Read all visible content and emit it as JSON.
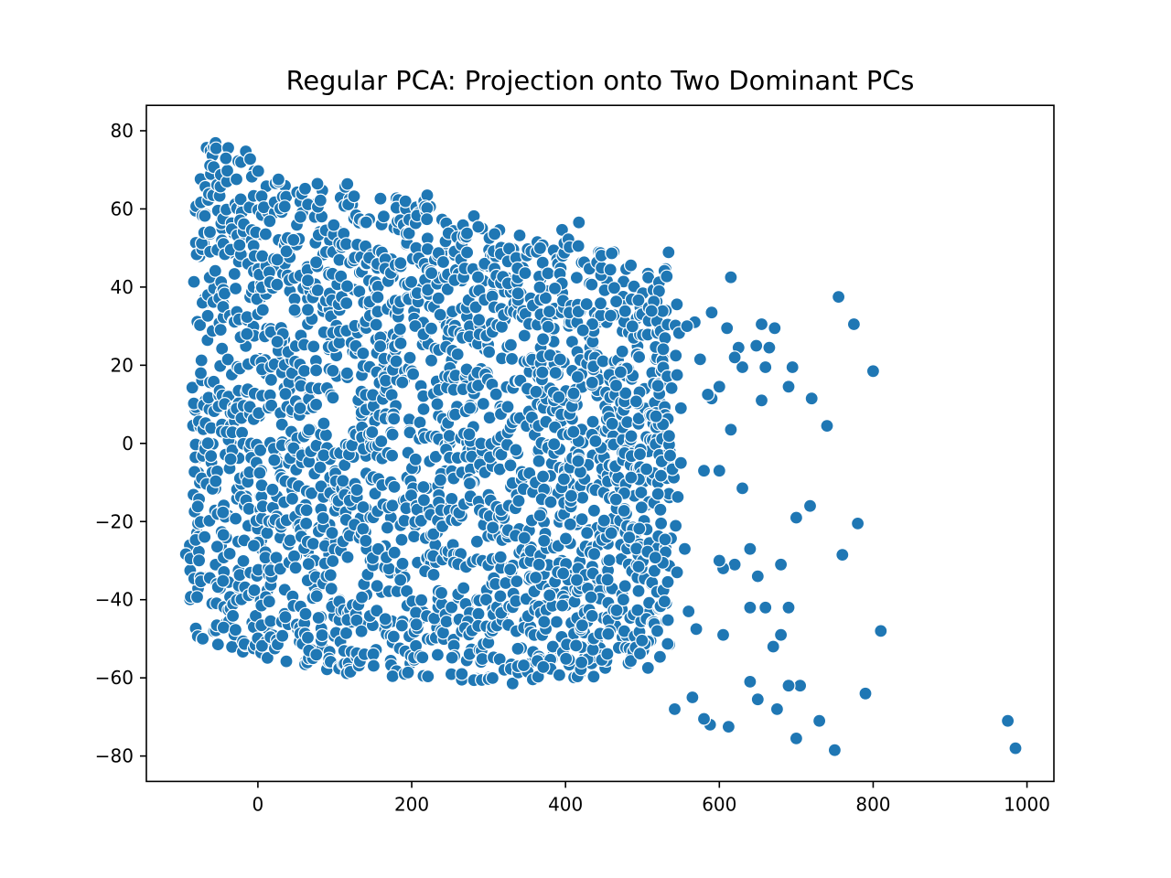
{
  "chart_data": {
    "type": "scatter",
    "title": "Regular PCA: Projection onto Two Dominant PCs",
    "xlabel": "",
    "ylabel": "",
    "xlim": [
      -145,
      1035
    ],
    "ylim": [
      -86.5,
      86.5
    ],
    "x_ticks": [
      0,
      200,
      400,
      600,
      800,
      1000
    ],
    "y_ticks": [
      80,
      60,
      40,
      20,
      0,
      -20,
      -40,
      -60,
      -80
    ],
    "y_tick_labels": [
      "80",
      "60",
      "40",
      "20",
      "0",
      "−20",
      "−40",
      "−60",
      "−80"
    ],
    "grid": false,
    "legend": "none",
    "marker_color": "#1f77b4",
    "marker_edge_color": "#ffffff",
    "outlier_points": [
      [
        975,
        -71
      ],
      [
        985,
        -78
      ],
      [
        810,
        -48
      ],
      [
        800,
        18.5
      ],
      [
        790,
        -64
      ],
      [
        780,
        -20.5
      ],
      [
        775,
        30.5
      ],
      [
        760,
        -28.5
      ],
      [
        755,
        37.5
      ],
      [
        750,
        -78.5
      ],
      [
        740,
        4.5
      ],
      [
        730,
        -71
      ],
      [
        720,
        11.5
      ],
      [
        718,
        -16
      ],
      [
        700,
        -19
      ],
      [
        700,
        -75.5
      ],
      [
        705,
        -62
      ],
      [
        695,
        19.5
      ],
      [
        690,
        -42
      ],
      [
        690,
        14.5
      ],
      [
        690,
        -62
      ],
      [
        680,
        -49
      ],
      [
        680,
        -31
      ],
      [
        675,
        -68
      ],
      [
        672,
        29.5
      ],
      [
        670,
        -52
      ],
      [
        665,
        24.5
      ],
      [
        660,
        19.5
      ],
      [
        660,
        -42
      ],
      [
        655,
        11
      ],
      [
        655,
        30.5
      ],
      [
        650,
        -34
      ],
      [
        650,
        -65.5
      ],
      [
        648,
        25
      ],
      [
        640,
        -61
      ],
      [
        640,
        -42
      ],
      [
        640,
        -27
      ],
      [
        630,
        19.5
      ],
      [
        630,
        -11.5
      ],
      [
        625,
        24.5
      ],
      [
        620,
        -31
      ],
      [
        620,
        22
      ],
      [
        615,
        3.5
      ],
      [
        615,
        42.5
      ],
      [
        612,
        -72.5
      ],
      [
        610,
        29.5
      ],
      [
        605,
        -49
      ],
      [
        605,
        -32
      ],
      [
        600,
        -7
      ],
      [
        600,
        14.5
      ],
      [
        600,
        -30
      ],
      [
        590,
        11.5
      ],
      [
        590,
        33.5
      ],
      [
        588,
        -72
      ],
      [
        585,
        12.5
      ],
      [
        580,
        -7
      ],
      [
        580,
        -70.5
      ],
      [
        575,
        21.5
      ],
      [
        570,
        -47.5
      ],
      [
        568,
        31
      ],
      [
        565,
        -65
      ],
      [
        560,
        -43
      ],
      [
        558,
        30
      ],
      [
        555,
        -27
      ],
      [
        550,
        9
      ],
      [
        550,
        -5
      ],
      [
        545,
        17.5
      ],
      [
        545,
        -33
      ],
      [
        542,
        -68
      ]
    ],
    "dense_region": {
      "description_free": true,
      "columns": [
        [
          -90,
          -46,
          -26
        ],
        [
          -80,
          -50,
          66
        ],
        [
          -70,
          -51,
          76
        ],
        [
          -60,
          -52,
          77
        ],
        [
          -50,
          -52,
          78
        ],
        [
          -40,
          -53,
          78
        ],
        [
          -30,
          -53,
          77
        ],
        [
          -20,
          -54,
          75
        ],
        [
          -10,
          -54,
          74
        ],
        [
          0,
          -55,
          74
        ],
        [
          10,
          -55,
          74
        ],
        [
          20,
          -55,
          72
        ],
        [
          30,
          -56,
          71
        ],
        [
          40,
          -56,
          70
        ],
        [
          50,
          -57,
          69
        ],
        [
          60,
          -57,
          69
        ],
        [
          70,
          -57,
          68
        ],
        [
          80,
          -58,
          67
        ],
        [
          90,
          -58,
          66
        ],
        [
          100,
          -58,
          66
        ],
        [
          110,
          -58,
          67
        ],
        [
          120,
          -59,
          67
        ],
        [
          130,
          -59,
          65
        ],
        [
          140,
          -59,
          64
        ],
        [
          150,
          -59,
          63
        ],
        [
          160,
          -59,
          63
        ],
        [
          170,
          -60,
          63
        ],
        [
          180,
          -60,
          63
        ],
        [
          190,
          -60,
          62
        ],
        [
          200,
          -60,
          62
        ],
        [
          210,
          -60,
          63
        ],
        [
          220,
          -60,
          64
        ],
        [
          230,
          -61,
          61
        ],
        [
          240,
          -61,
          60
        ],
        [
          250,
          -61,
          59
        ],
        [
          260,
          -61,
          58
        ],
        [
          270,
          -61,
          57
        ],
        [
          280,
          -61,
          61
        ],
        [
          290,
          -62,
          56
        ],
        [
          300,
          -62,
          56
        ],
        [
          310,
          -62,
          55
        ],
        [
          320,
          -62,
          55
        ],
        [
          330,
          -62,
          54
        ],
        [
          340,
          -62,
          54
        ],
        [
          350,
          -62,
          53
        ],
        [
          360,
          -61,
          52
        ],
        [
          370,
          -61,
          51
        ],
        [
          380,
          -61,
          50
        ],
        [
          390,
          -61,
          49
        ],
        [
          400,
          -61,
          58
        ],
        [
          410,
          -60,
          47
        ],
        [
          420,
          -60,
          57
        ],
        [
          430,
          -59,
          46
        ],
        [
          440,
          -59,
          55
        ],
        [
          450,
          -59,
          52
        ],
        [
          460,
          -58,
          49
        ],
        [
          470,
          -57,
          48
        ],
        [
          480,
          -57,
          47
        ],
        [
          490,
          -56,
          46
        ],
        [
          500,
          -55,
          46
        ],
        [
          510,
          -54,
          45
        ],
        [
          520,
          -53,
          46
        ],
        [
          530,
          -52,
          50
        ]
      ]
    }
  }
}
